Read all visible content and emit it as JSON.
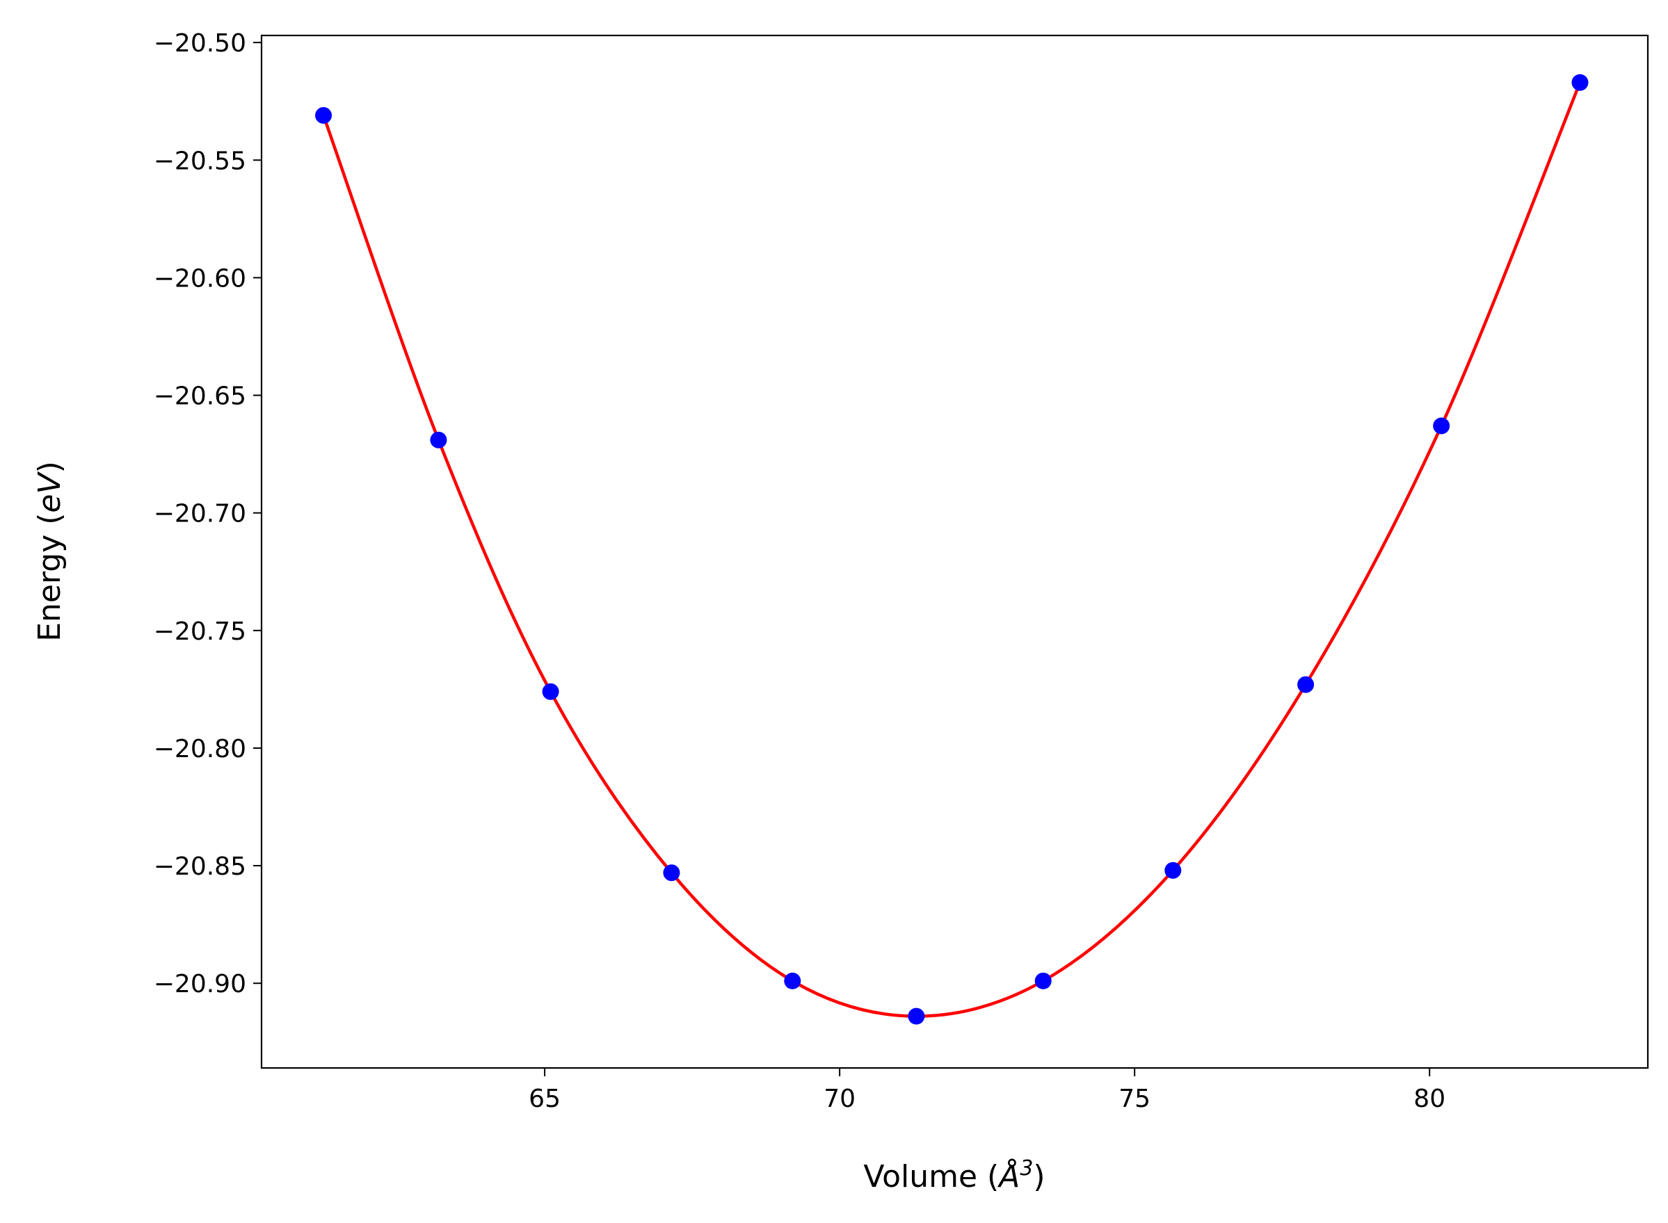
{
  "chart_data": {
    "type": "scatter",
    "title": "",
    "xlabel": "Volume (Å³)",
    "xlabel_parts": {
      "prefix": "Volume (",
      "symbol": "Å",
      "exponent": "3",
      "suffix": ")"
    },
    "ylabel": "Energy (eV)",
    "ylabel_parts": {
      "prefix": "Energy (",
      "symbol": "eV",
      "suffix": ")"
    },
    "xlim": [
      60.2,
      83.7
    ],
    "ylim": [
      -20.936,
      -20.497
    ],
    "x_ticks": [
      65,
      70,
      75,
      80
    ],
    "x_tick_labels": [
      "65",
      "70",
      "75",
      "80"
    ],
    "y_ticks": [
      -20.5,
      -20.55,
      -20.6,
      -20.65,
      -20.7,
      -20.75,
      -20.8,
      -20.85,
      -20.9
    ],
    "y_tick_labels": [
      "−20.50",
      "−20.55",
      "−20.60",
      "−20.65",
      "−20.70",
      "−20.75",
      "−20.80",
      "−20.85",
      "−20.90"
    ],
    "grid": false,
    "legend": "none",
    "series": [
      {
        "type": "scatter",
        "color": "#0000ff",
        "x": [
          61.25,
          63.2,
          65.1,
          67.15,
          69.2,
          71.3,
          73.45,
          75.65,
          77.9,
          80.2,
          82.55
        ],
        "y": [
          -20.531,
          -20.669,
          -20.776,
          -20.853,
          -20.899,
          -20.914,
          -20.899,
          -20.852,
          -20.773,
          -20.663,
          -20.517
        ]
      },
      {
        "type": "line",
        "color": "#ff0000",
        "fit": "interpolated",
        "x": [
          61.25,
          63.2,
          65.1,
          67.15,
          69.2,
          71.3,
          73.45,
          75.65,
          77.9,
          80.2,
          82.55
        ],
        "y": [
          -20.531,
          -20.669,
          -20.776,
          -20.853,
          -20.899,
          -20.914,
          -20.899,
          -20.852,
          -20.773,
          -20.663,
          -20.517
        ]
      }
    ]
  }
}
